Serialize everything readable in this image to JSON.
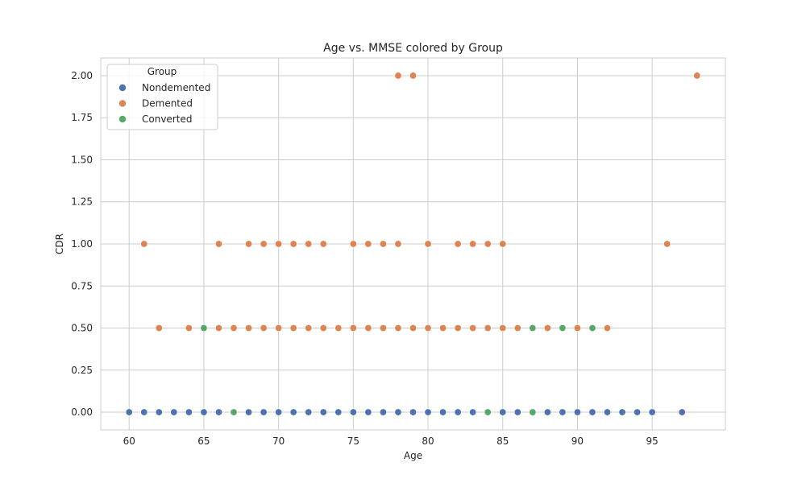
{
  "chart_data": {
    "type": "scatter",
    "title": "Age vs. MMSE colored by Group",
    "xlabel": "Age",
    "ylabel": "CDR",
    "xlim": [
      58.1,
      99.9
    ],
    "ylim": [
      -0.105,
      2.105
    ],
    "x_ticks": [
      60,
      65,
      70,
      75,
      80,
      85,
      90,
      95
    ],
    "y_ticks": [
      0.0,
      0.25,
      0.5,
      0.75,
      1.0,
      1.25,
      1.5,
      1.75,
      2.0
    ],
    "y_tick_labels": [
      "0.00",
      "0.25",
      "0.50",
      "0.75",
      "1.00",
      "1.25",
      "1.50",
      "1.75",
      "2.00"
    ],
    "grid": true,
    "legend": {
      "title": "Group",
      "position": "top-left"
    },
    "series": [
      {
        "name": "Nondemented",
        "color": "#4c72b0",
        "points": [
          [
            60,
            0
          ],
          [
            61,
            0
          ],
          [
            62,
            0
          ],
          [
            63,
            0
          ],
          [
            64,
            0
          ],
          [
            65,
            0
          ],
          [
            66,
            0
          ],
          [
            68,
            0
          ],
          [
            69,
            0
          ],
          [
            70,
            0
          ],
          [
            71,
            0
          ],
          [
            72,
            0
          ],
          [
            73,
            0
          ],
          [
            74,
            0
          ],
          [
            75,
            0
          ],
          [
            76,
            0
          ],
          [
            77,
            0
          ],
          [
            78,
            0
          ],
          [
            79,
            0
          ],
          [
            80,
            0
          ],
          [
            81,
            0
          ],
          [
            82,
            0
          ],
          [
            83,
            0
          ],
          [
            85,
            0
          ],
          [
            86,
            0
          ],
          [
            88,
            0
          ],
          [
            89,
            0
          ],
          [
            90,
            0
          ],
          [
            91,
            0
          ],
          [
            92,
            0
          ],
          [
            93,
            0
          ],
          [
            94,
            0
          ],
          [
            95,
            0
          ],
          [
            97,
            0
          ]
        ]
      },
      {
        "name": "Demented",
        "color": "#dd8452",
        "points": [
          [
            61,
            1
          ],
          [
            66,
            1
          ],
          [
            68,
            1
          ],
          [
            69,
            1
          ],
          [
            70,
            1
          ],
          [
            71,
            1
          ],
          [
            72,
            1
          ],
          [
            73,
            1
          ],
          [
            75,
            1
          ],
          [
            76,
            1
          ],
          [
            77,
            1
          ],
          [
            78,
            1
          ],
          [
            80,
            1
          ],
          [
            82,
            1
          ],
          [
            83,
            1
          ],
          [
            84,
            1
          ],
          [
            85,
            1
          ],
          [
            96,
            1
          ],
          [
            62,
            0.5
          ],
          [
            64,
            0.5
          ],
          [
            66,
            0.5
          ],
          [
            67,
            0.5
          ],
          [
            68,
            0.5
          ],
          [
            69,
            0.5
          ],
          [
            70,
            0.5
          ],
          [
            71,
            0.5
          ],
          [
            72,
            0.5
          ],
          [
            73,
            0.5
          ],
          [
            74,
            0.5
          ],
          [
            75,
            0.5
          ],
          [
            76,
            0.5
          ],
          [
            77,
            0.5
          ],
          [
            78,
            0.5
          ],
          [
            79,
            0.5
          ],
          [
            80,
            0.5
          ],
          [
            81,
            0.5
          ],
          [
            82,
            0.5
          ],
          [
            83,
            0.5
          ],
          [
            84,
            0.5
          ],
          [
            85,
            0.5
          ],
          [
            86,
            0.5
          ],
          [
            88,
            0.5
          ],
          [
            90,
            0.5
          ],
          [
            92,
            0.5
          ],
          [
            78,
            2
          ],
          [
            79,
            2
          ],
          [
            98,
            2
          ]
        ]
      },
      {
        "name": "Converted",
        "color": "#55a868",
        "points": [
          [
            65,
            0.5
          ],
          [
            87,
            0.5
          ],
          [
            89,
            0.5
          ],
          [
            91,
            0.5
          ],
          [
            67,
            0
          ],
          [
            84,
            0
          ],
          [
            87,
            0
          ]
        ]
      }
    ]
  }
}
